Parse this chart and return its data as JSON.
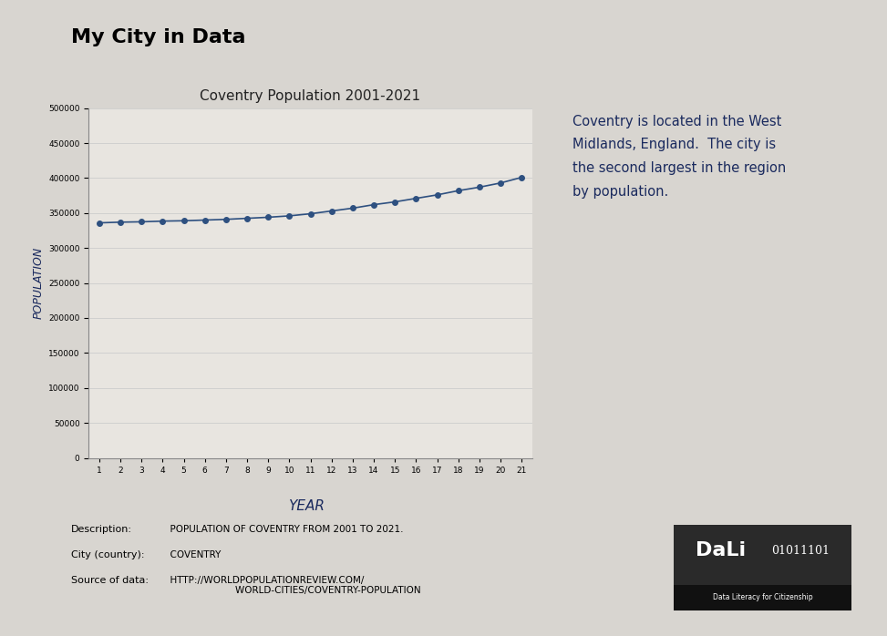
{
  "title": "Coventry Population 2001-2021",
  "xlabel_handwritten": "YEAR",
  "ylabel_rotated": "POPULATION",
  "x_values": [
    1,
    2,
    3,
    4,
    5,
    6,
    7,
    8,
    9,
    10,
    11,
    12,
    13,
    14,
    15,
    16,
    17,
    18,
    19,
    20,
    21
  ],
  "y_values": [
    336000,
    337000,
    337500,
    338500,
    339000,
    340000,
    341000,
    342500,
    344000,
    346000,
    349000,
    353000,
    357000,
    362000,
    366000,
    371000,
    376000,
    382000,
    387000,
    393000,
    401000
  ],
  "ylim": [
    0,
    500000
  ],
  "yticks": [
    0,
    50000,
    100000,
    150000,
    200000,
    250000,
    300000,
    350000,
    400000,
    450000,
    500000
  ],
  "line_color": "#2e5080",
  "marker": "o",
  "markersize": 4,
  "linewidth": 1.2,
  "background_color": "#d8d5d0",
  "chart_bg_color": "#e8e5e0",
  "chart_border_color": "#aaaaaa",
  "title_fontsize": 11,
  "main_title": "My City in Data",
  "annotation_text": "Coventry is located in the West\nMidlands, England.  The city is\nthe second largest in the region\nby population.",
  "annotation_color": "#1a2a5e",
  "desc_label": "Description:",
  "desc_value": "  POPULATION OF COVENTRY FROM 2001 TO 2021.",
  "city_label": "City (country):",
  "city_value": "  COVENTRY",
  "source_label": "Source of data:",
  "source_value": "  HTTP://WORLDPOPULATIONREVIEW.COM/\n                        WORLD-CITIES/COVENTRY-POPULATION"
}
